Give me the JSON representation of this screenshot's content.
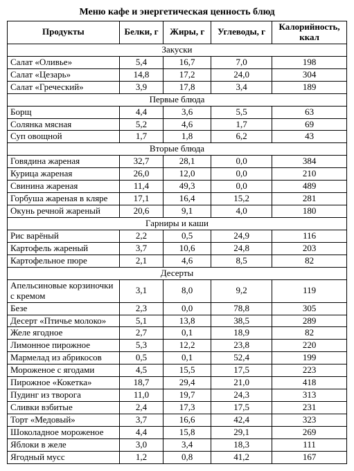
{
  "title": "Меню кафе и энергетическая ценность блюд",
  "columns": [
    "Продукты",
    "Белки, г",
    "Жиры, г",
    "Углеводы, г",
    "Калорийность, ккал"
  ],
  "sections": [
    {
      "name": "Закуски",
      "rows": [
        {
          "name": "Салат «Оливье»",
          "p": "5,4",
          "f": "16,7",
          "c": "7,0",
          "k": "198"
        },
        {
          "name": "Салат «Цезарь»",
          "p": "14,8",
          "f": "17,2",
          "c": "24,0",
          "k": "304"
        },
        {
          "name": "Салат «Греческий»",
          "p": "3,9",
          "f": "17,8",
          "c": "3,4",
          "k": "189"
        }
      ]
    },
    {
      "name": "Первые блюда",
      "rows": [
        {
          "name": "Борщ",
          "p": "4,4",
          "f": "3,6",
          "c": "5,5",
          "k": "63"
        },
        {
          "name": "Солянка мясная",
          "p": "5,2",
          "f": "4,6",
          "c": "1,7",
          "k": "69"
        },
        {
          "name": "Суп овощной",
          "p": "1,7",
          "f": "1,8",
          "c": "6,2",
          "k": "43"
        }
      ]
    },
    {
      "name": "Вторые блюда",
      "rows": [
        {
          "name": "Говядина жареная",
          "p": "32,7",
          "f": "28,1",
          "c": "0,0",
          "k": "384"
        },
        {
          "name": "Курица жареная",
          "p": "26,0",
          "f": "12,0",
          "c": "0,0",
          "k": "210"
        },
        {
          "name": "Свинина жареная",
          "p": "11,4",
          "f": "49,3",
          "c": "0,0",
          "k": "489"
        },
        {
          "name": "Горбуша жареная в кляре",
          "p": "17,1",
          "f": "16,4",
          "c": "15,2",
          "k": "281"
        },
        {
          "name": "Окунь речной жареный",
          "p": "20,6",
          "f": "9,1",
          "c": "4,0",
          "k": "180"
        }
      ]
    },
    {
      "name": "Гарниры и каши",
      "rows": [
        {
          "name": "Рис варёный",
          "p": "2,2",
          "f": "0,5",
          "c": "24,9",
          "k": "116"
        },
        {
          "name": "Картофель жареный",
          "p": "3,7",
          "f": "10,6",
          "c": "24,8",
          "k": "203"
        },
        {
          "name": "Картофельное пюре",
          "p": "2,1",
          "f": "4,6",
          "c": "8,5",
          "k": "82"
        }
      ]
    },
    {
      "name": "Десерты",
      "rows": [
        {
          "name": "Апельсиновые корзиночки с кремом",
          "p": "3,1",
          "f": "8,0",
          "c": "9,2",
          "k": "119"
        },
        {
          "name": "Безе",
          "p": "2,3",
          "f": "0,0",
          "c": "78,8",
          "k": "305"
        },
        {
          "name": "Десерт «Птичье молоко»",
          "p": "5,1",
          "f": "13,8",
          "c": "38,5",
          "k": "289"
        },
        {
          "name": "Желе ягодное",
          "p": "2,7",
          "f": "0,1",
          "c": "18,9",
          "k": "82"
        },
        {
          "name": "Лимонное пирожное",
          "p": "5,3",
          "f": "12,2",
          "c": "23,8",
          "k": "220"
        },
        {
          "name": "Мармелад из абрикосов",
          "p": "0,5",
          "f": "0,1",
          "c": "52,4",
          "k": "199"
        },
        {
          "name": "Мороженое с ягодами",
          "p": "4,5",
          "f": "15,5",
          "c": "17,5",
          "k": "223"
        },
        {
          "name": "Пирожное «Кокетка»",
          "p": "18,7",
          "f": "29,4",
          "c": "21,0",
          "k": "418"
        },
        {
          "name": "Пудинг из творога",
          "p": "11,0",
          "f": "19,7",
          "c": "24,3",
          "k": "313"
        },
        {
          "name": "Сливки взбитые",
          "p": "2,4",
          "f": "17,3",
          "c": "17,5",
          "k": "231"
        },
        {
          "name": "Торт «Медовый»",
          "p": "3,7",
          "f": "16,6",
          "c": "42,4",
          "k": "323"
        },
        {
          "name": "Шоколадное мороженое",
          "p": "4,4",
          "f": "15,8",
          "c": "29,1",
          "k": "269"
        },
        {
          "name": "Яблоки в желе",
          "p": "3,0",
          "f": "3,4",
          "c": "18,3",
          "k": "111"
        },
        {
          "name": "Ягодный мусс",
          "p": "1,2",
          "f": "0,8",
          "c": "41,2",
          "k": "167"
        }
      ]
    }
  ]
}
